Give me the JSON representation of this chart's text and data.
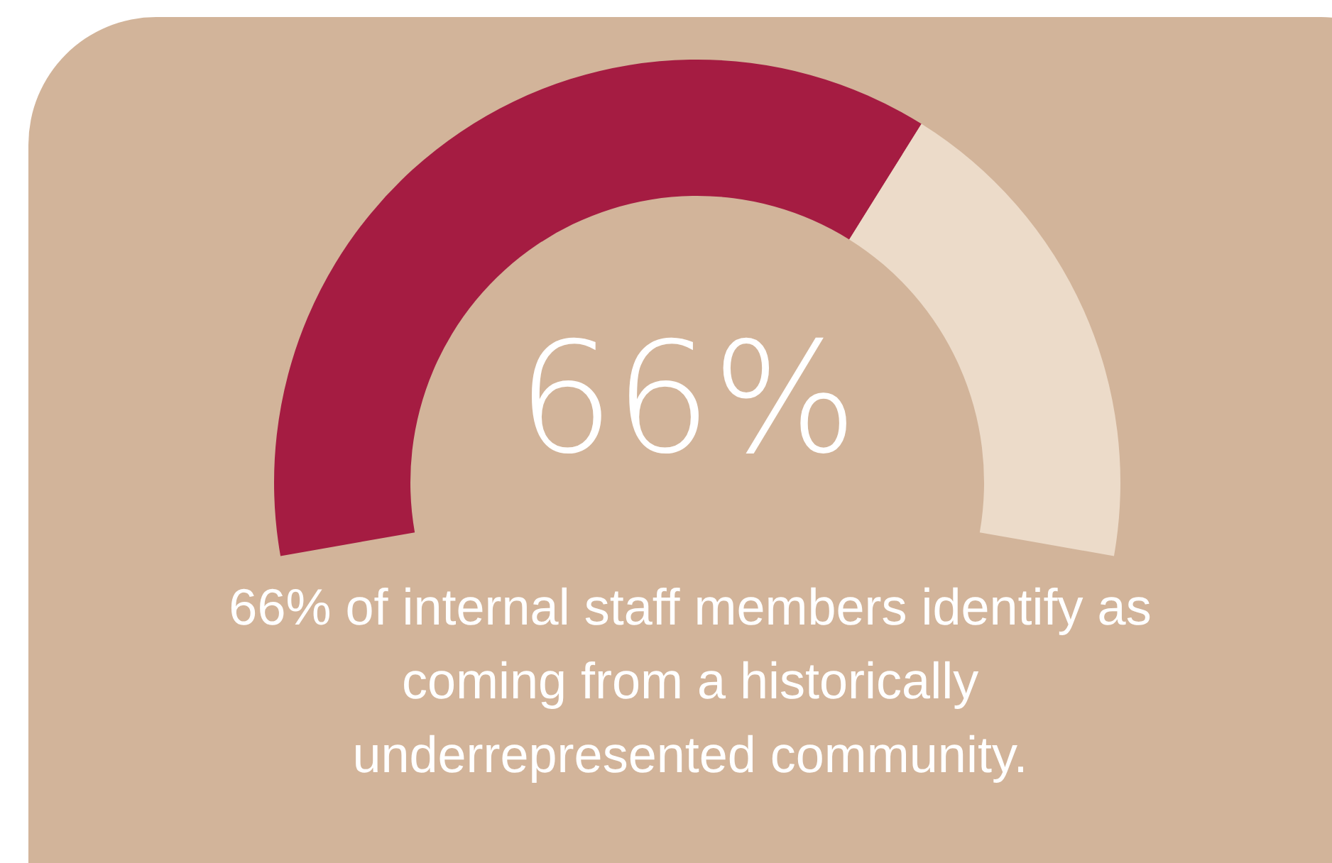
{
  "chart_data": {
    "type": "donut",
    "categories": [
      null,
      null
    ],
    "values": [
      66,
      34
    ],
    "colors": [
      "#a51c42",
      "#ecdbc9"
    ],
    "value_labels": [
      "66%",
      null
    ],
    "annotations": [
      "66% of internal staff members identify as coming from a historically underrepresented community."
    ]
  }
}
